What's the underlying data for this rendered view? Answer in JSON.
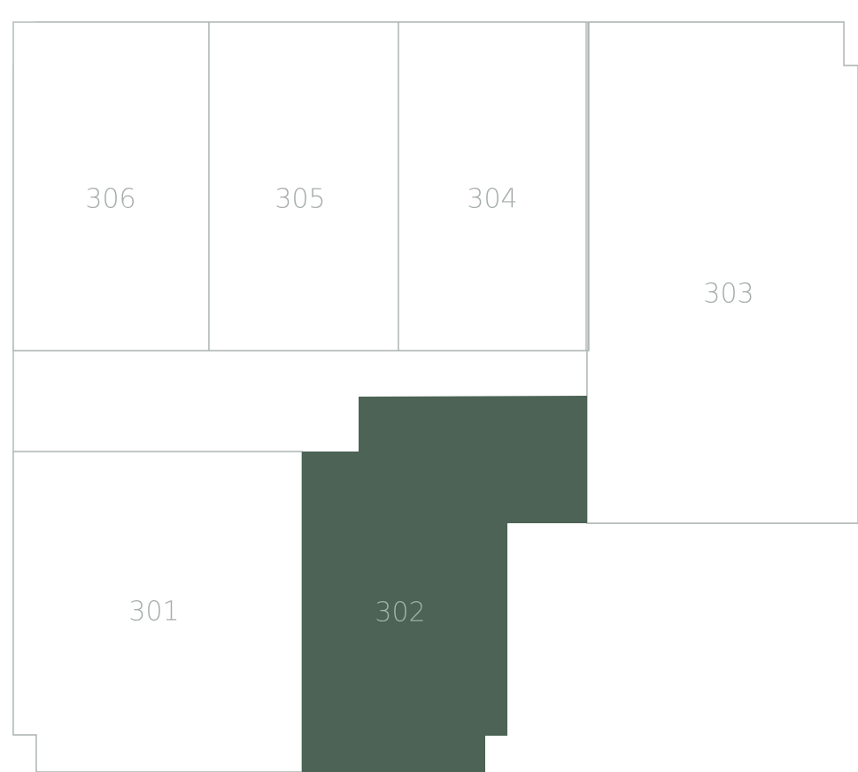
{
  "floor_plan": {
    "units": [
      {
        "id": "306",
        "label": "306",
        "selected": false
      },
      {
        "id": "305",
        "label": "305",
        "selected": false
      },
      {
        "id": "304",
        "label": "304",
        "selected": false
      },
      {
        "id": "303",
        "label": "303",
        "selected": false
      },
      {
        "id": "301",
        "label": "301",
        "selected": false
      },
      {
        "id": "302",
        "label": "302",
        "selected": true
      }
    ],
    "colors": {
      "line": "#aeb6b2",
      "label": "#a5aca9",
      "selected_fill": "#4c6355",
      "background": "#ffffff"
    }
  }
}
